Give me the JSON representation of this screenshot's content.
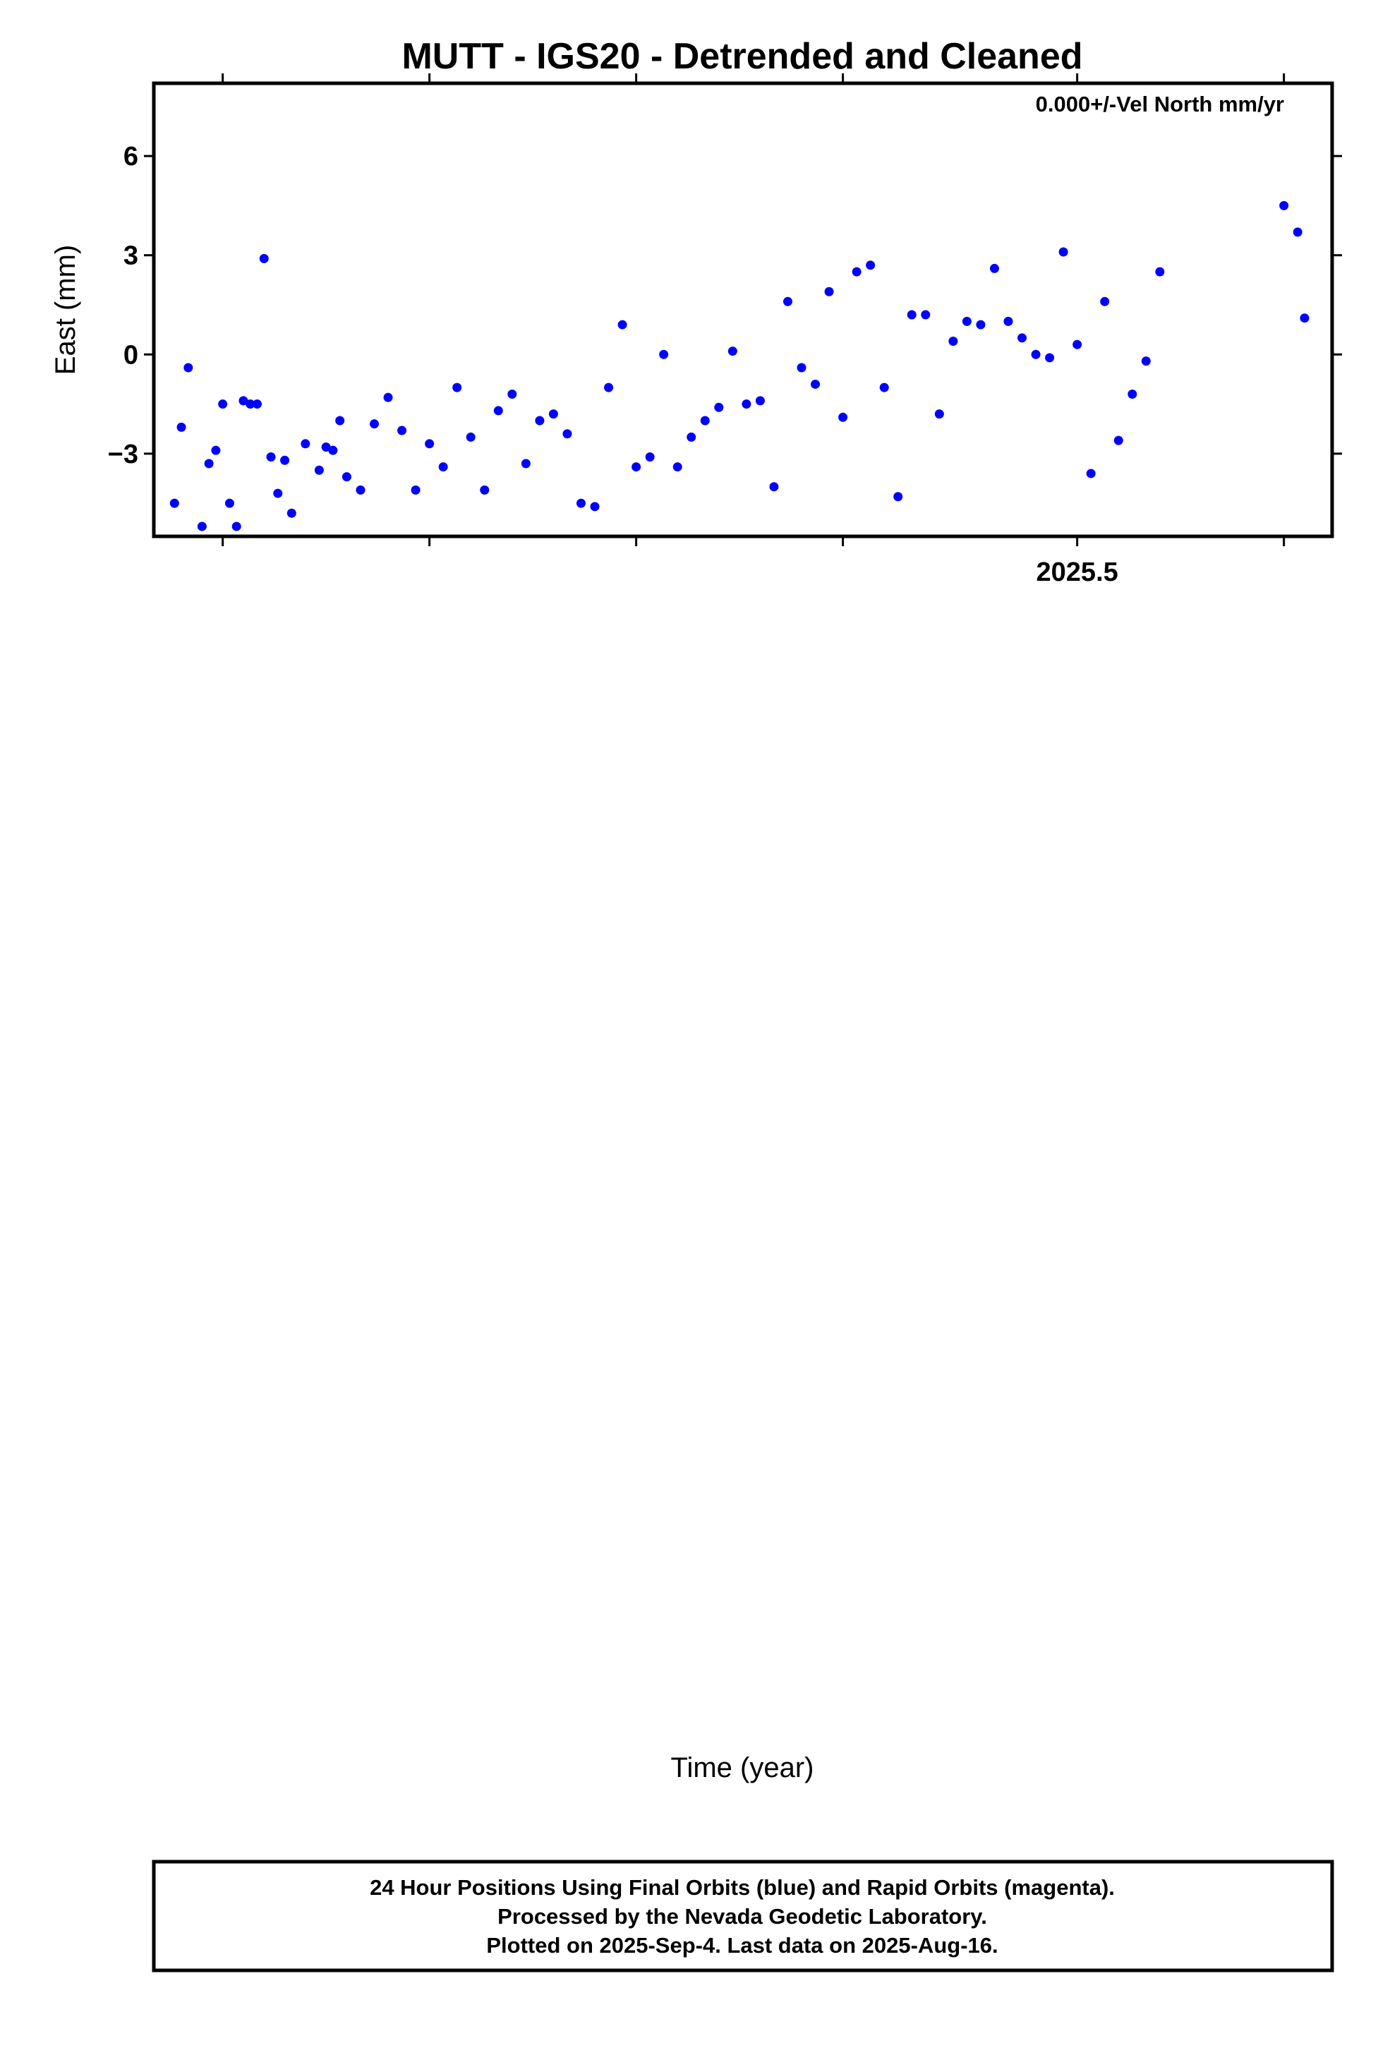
{
  "title": "MUTT - IGS20 - Detrended and Cleaned",
  "x_axis_label": "Time (year)",
  "footer": {
    "line1": "24 Hour Positions Using Final Orbits (blue) and Rapid Orbits (magenta).",
    "line2": "Processed by the Nevada Geodetic Laboratory.",
    "line3": "Plotted on 2025-Sep-4. Last data on 2025-Aug-16."
  },
  "colors": {
    "points": "#0000ff",
    "fit": "#ff0000",
    "frame": "#000000"
  },
  "chart_data": [
    {
      "type": "scatter",
      "ylabel": "East (mm)",
      "annotation": "0.000+/-Vel North mm/yr",
      "xlim": [
        2024.83,
        2025.685
      ],
      "ylim": [
        -5.5,
        8.2
      ],
      "xticks": [
        2024.88,
        2025.03,
        2025.18,
        2025.33,
        2025.5,
        2025.65
      ],
      "xtick_labels": [
        {
          "x": 2025.5,
          "label": "2025.5"
        }
      ],
      "yticks": [
        -3,
        0,
        3,
        6
      ],
      "series": [
        {
          "x": [
            2024.845,
            2024.85,
            2024.855,
            2024.865,
            2024.87,
            2024.875,
            2024.88,
            2024.885,
            2024.89,
            2024.895,
            2024.9,
            2024.905,
            2024.91,
            2024.915,
            2024.92,
            2024.925,
            2024.93,
            2024.94,
            2024.95,
            2024.955,
            2024.96,
            2024.965,
            2024.97,
            2024.98,
            2024.99,
            2025.0,
            2025.01,
            2025.02,
            2025.03,
            2025.04,
            2025.05,
            2025.06,
            2025.07,
            2025.08,
            2025.09,
            2025.1,
            2025.11,
            2025.12,
            2025.13,
            2025.14,
            2025.15,
            2025.16,
            2025.17,
            2025.18,
            2025.19,
            2025.2,
            2025.21,
            2025.22,
            2025.23,
            2025.24,
            2025.25,
            2025.26,
            2025.27,
            2025.28,
            2025.29,
            2025.3,
            2025.31,
            2025.32,
            2025.33,
            2025.34,
            2025.35,
            2025.36,
            2025.37,
            2025.38,
            2025.39,
            2025.4,
            2025.41,
            2025.42,
            2025.43,
            2025.44,
            2025.45,
            2025.46,
            2025.47,
            2025.48,
            2025.49,
            2025.5,
            2025.51,
            2025.52,
            2025.53,
            2025.54,
            2025.55,
            2025.56,
            2025.65,
            2025.66,
            2025.665
          ],
          "y": [
            -4.5,
            -2.2,
            -0.4,
            -5.2,
            -3.3,
            -2.9,
            -1.5,
            -4.5,
            -5.2,
            -1.4,
            -1.5,
            -1.5,
            2.9,
            -3.1,
            -4.2,
            -3.2,
            -4.8,
            -2.7,
            -3.5,
            -2.8,
            -2.9,
            -2.0,
            -3.7,
            -4.1,
            -2.1,
            -1.3,
            -2.3,
            -4.1,
            -2.7,
            -3.4,
            -1.0,
            -2.5,
            -4.1,
            -1.7,
            -1.2,
            -3.3,
            -2.0,
            -1.8,
            -2.4,
            -4.5,
            -4.6,
            -1.0,
            0.9,
            -3.4,
            -3.1,
            0.0,
            -3.4,
            -2.5,
            -2.0,
            -1.6,
            0.1,
            -1.5,
            -1.4,
            -4.0,
            1.6,
            -0.4,
            -0.9,
            1.9,
            -1.9,
            2.5,
            2.7,
            -1.0,
            -4.3,
            1.2,
            1.2,
            -1.8,
            0.4,
            1.0,
            0.9,
            2.6,
            1.0,
            0.5,
            0.0,
            -0.1,
            3.1,
            0.3,
            -3.6,
            1.6,
            -2.6,
            -1.2,
            -0.2,
            2.5,
            4.5,
            3.7,
            1.1
          ],
          "_note": "scatter points (mm)"
        }
      ]
    }
  ]
}
